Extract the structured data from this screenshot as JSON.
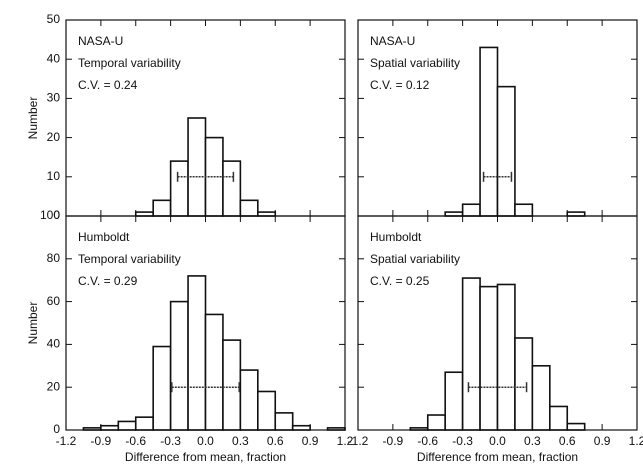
{
  "chart_data": [
    {
      "type": "histogram",
      "annotations": [
        "NASA-U",
        "Temporal variability",
        "C.V. = 0.24"
      ],
      "ylabel": "Number",
      "bins": [
        -1.2,
        -1.05,
        -0.9,
        -0.75,
        -0.6,
        -0.45,
        -0.3,
        -0.15,
        0,
        0.15,
        0.3,
        0.45,
        0.6,
        0.75,
        0.9,
        1.05,
        1.2
      ],
      "values": [
        0,
        0,
        0,
        0,
        1,
        4,
        14,
        25,
        20,
        14,
        4,
        1,
        0,
        0,
        0,
        0
      ],
      "error_bar": {
        "x": 0,
        "y": 10,
        "error": 0.24
      },
      "xlim": [
        -1.2,
        1.2
      ],
      "ylim": [
        0,
        50
      ],
      "xticks": [
        -1.2,
        -0.9,
        -0.6,
        -0.3,
        {
          "value": 0,
          "label": "0.0"
        },
        0.3,
        0.6,
        0.9,
        1.2
      ],
      "yticks": [
        0,
        10,
        20,
        30,
        40,
        50
      ],
      "show_xtick_labels": false,
      "show_ytick_labels": true
    },
    {
      "type": "histogram",
      "annotations": [
        "NASA-U",
        "Spatial variability",
        "C.V. = 0.12"
      ],
      "bins": [
        -1.2,
        -1.05,
        -0.9,
        -0.75,
        -0.6,
        -0.45,
        -0.3,
        -0.15,
        0,
        0.15,
        0.3,
        0.45,
        0.6,
        0.75,
        0.9,
        1.05,
        1.2
      ],
      "values": [
        0,
        0,
        0,
        0,
        0,
        1,
        3,
        43,
        33,
        3,
        0,
        0,
        1,
        0,
        0,
        0
      ],
      "error_bar": {
        "x": 0,
        "y": 10,
        "error": 0.12
      },
      "xlim": [
        -1.2,
        1.2
      ],
      "ylim": [
        0,
        50
      ],
      "xticks": [
        -1.2,
        -0.9,
        -0.6,
        -0.3,
        {
          "value": 0,
          "label": "0.0"
        },
        0.3,
        0.6,
        0.9,
        1.2
      ],
      "yticks": [
        0,
        10,
        20,
        30,
        40,
        50
      ],
      "show_xtick_labels": false,
      "show_ytick_labels": false
    },
    {
      "type": "histogram",
      "annotations": [
        "Humboldt",
        "Temporal variability",
        "C.V. = 0.29"
      ],
      "ylabel": "Number",
      "xlabel": "Difference from mean, fraction",
      "bins": [
        -1.2,
        -1.05,
        -0.9,
        -0.75,
        -0.6,
        -0.45,
        -0.3,
        -0.15,
        0,
        0.15,
        0.3,
        0.45,
        0.6,
        0.75,
        0.9,
        1.05,
        1.2
      ],
      "values": [
        0,
        1,
        2,
        4,
        6,
        39,
        60,
        72,
        54,
        42,
        28,
        18,
        8,
        2,
        0,
        1
      ],
      "error_bar": {
        "x": 0,
        "y": 20,
        "error": 0.29
      },
      "xlim": [
        -1.2,
        1.2
      ],
      "ylim": [
        0,
        100
      ],
      "xticks": [
        -1.2,
        -0.9,
        -0.6,
        -0.3,
        {
          "value": 0,
          "label": "0.0"
        },
        0.3,
        0.6,
        0.9,
        1.2
      ],
      "yticks": [
        0,
        20,
        40,
        60,
        80,
        100
      ],
      "show_xtick_labels": true,
      "show_ytick_labels": true
    },
    {
      "type": "histogram",
      "annotations": [
        "Humboldt",
        "Spatial variability",
        "C.V. = 0.25"
      ],
      "xlabel": "Difference from mean, fraction",
      "bins": [
        -1.2,
        -1.05,
        -0.9,
        -0.75,
        -0.6,
        -0.45,
        -0.3,
        -0.15,
        0,
        0.15,
        0.3,
        0.45,
        0.6,
        0.75,
        0.9,
        1.05,
        1.2
      ],
      "values": [
        0,
        0,
        0,
        1,
        7,
        27,
        71,
        67,
        68,
        43,
        30,
        11,
        3,
        0,
        0,
        0
      ],
      "error_bar": {
        "x": 0,
        "y": 20,
        "error": 0.25
      },
      "xlim": [
        -1.2,
        1.2
      ],
      "ylim": [
        0,
        100
      ],
      "xticks": [
        -1.2,
        -0.9,
        -0.6,
        -0.3,
        {
          "value": 0,
          "label": "0.0"
        },
        0.3,
        0.6,
        0.9,
        1.2
      ],
      "yticks": [
        0,
        20,
        40,
        60,
        80,
        100
      ],
      "show_xtick_labels": true,
      "show_ytick_labels": false
    }
  ]
}
